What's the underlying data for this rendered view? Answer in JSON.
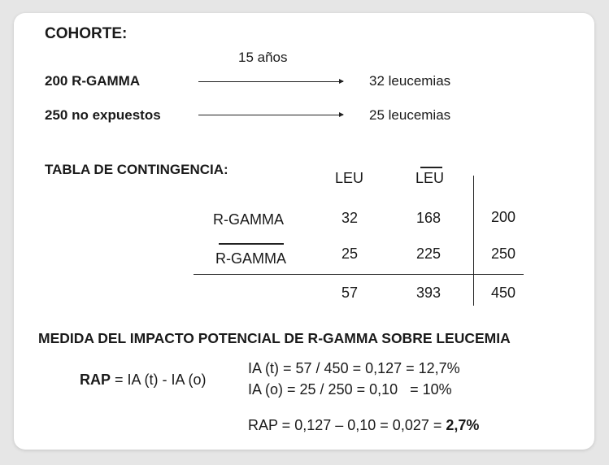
{
  "cohort": {
    "title": "COHORTE:",
    "duration": "15 años",
    "rows": [
      {
        "group": "200 R-GAMMA",
        "outcome": "32 leucemias"
      },
      {
        "group": "250 no expuestos",
        "outcome": "25 leucemias"
      }
    ]
  },
  "table": {
    "title": "TABLA DE CONTINGENCIA:",
    "col_headers": [
      "LEU",
      "LEU"
    ],
    "rows": [
      {
        "label": "R-GAMMA",
        "leu": "32",
        "no_leu": "168",
        "total": "200"
      },
      {
        "label": "R-GAMMA",
        "leu": "25",
        "no_leu": "225",
        "total": "250"
      }
    ],
    "totals": {
      "leu": "57",
      "no_leu": "393",
      "total": "450"
    }
  },
  "impact": {
    "title": "MEDIDA DEL IMPACTO POTENCIAL DE R-GAMMA SOBRE LEUCEMIA",
    "rap_label": "RAP",
    "rap_formula": " = IA (t) - IA (o)",
    "ia_t": "IA (t) = 57 / 450 = 0,127 = 12,7%",
    "ia_o": "IA (o) = 25 / 250 = 0,10   = 10%",
    "rap_calc": "RAP = 0,127 – 0,10 = 0,027 = ",
    "rap_result": "2,7%"
  }
}
